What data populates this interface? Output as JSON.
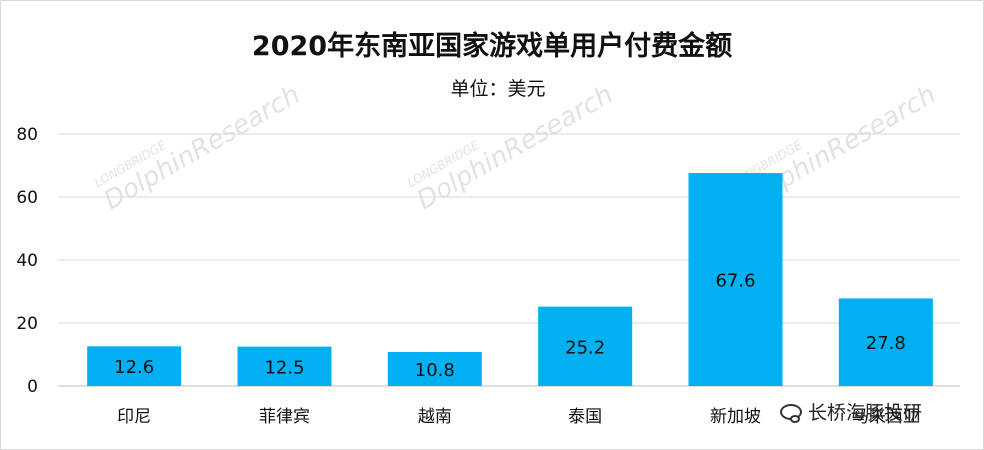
{
  "chart_data": {
    "type": "bar",
    "title": "2020年东南亚国家游戏单用户付费金额",
    "subtitle": "单位：美元",
    "categories": [
      "印尼",
      "菲律宾",
      "越南",
      "泰国",
      "新加坡",
      "马来西亚"
    ],
    "values": [
      12.6,
      12.5,
      10.8,
      25.2,
      67.6,
      27.8
    ],
    "yticks": [
      "0",
      "20",
      "40",
      "60",
      "80"
    ],
    "ylim": [
      0,
      80
    ],
    "bar_color": "#00b0f0",
    "grid": true,
    "data_labels": [
      "12.6",
      "12.5",
      "10.8",
      "25.2",
      "67.6",
      "27.8"
    ]
  },
  "watermark": {
    "line1": "LONGBRIDGE",
    "line2": "DolphinResearch"
  },
  "brand": {
    "icon": "wechat-icon",
    "text": "长桥海豚投研"
  }
}
